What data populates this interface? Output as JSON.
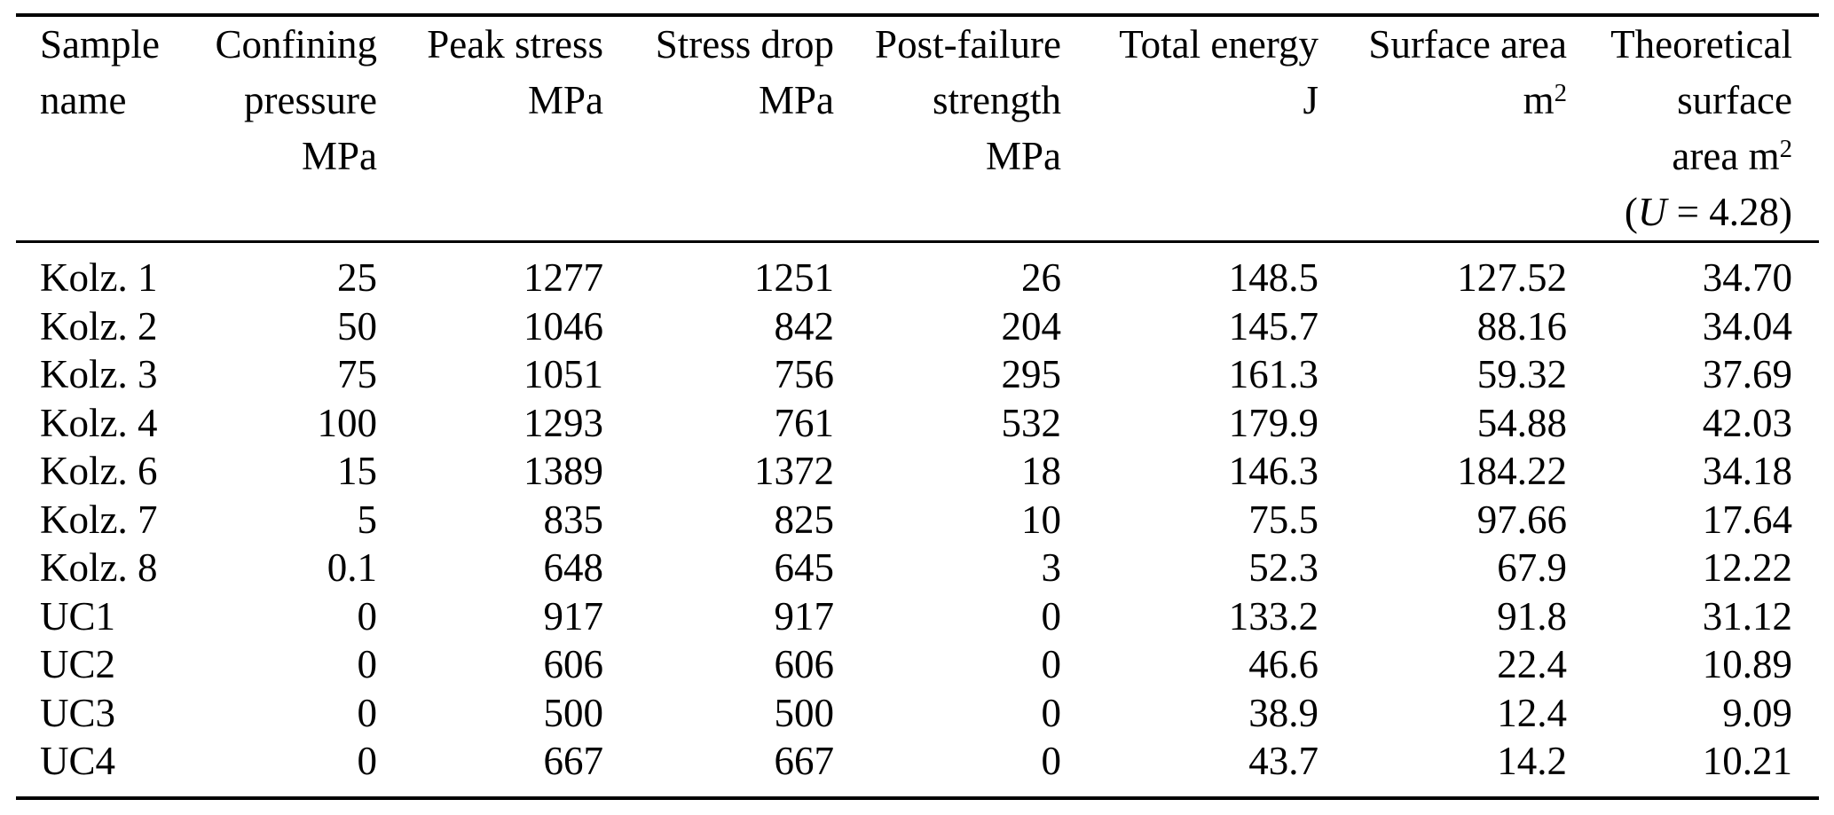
{
  "colors": {
    "text": "#000000",
    "background": "#ffffff",
    "rule": "#000000"
  },
  "table": {
    "columns": [
      {
        "id": "sample-name",
        "align": "left",
        "header_lines": [
          [
            {
              "t": "Sample"
            }
          ],
          [
            {
              "t": "name"
            }
          ]
        ]
      },
      {
        "id": "confining-pressure",
        "align": "right",
        "header_lines": [
          [
            {
              "t": "Confining"
            }
          ],
          [
            {
              "t": "pressure"
            }
          ],
          [
            {
              "t": "MPa"
            }
          ]
        ]
      },
      {
        "id": "peak-stress",
        "align": "right",
        "header_lines": [
          [
            {
              "t": "Peak stress"
            }
          ],
          [
            {
              "t": "MPa"
            }
          ]
        ]
      },
      {
        "id": "stress-drop",
        "align": "right",
        "header_lines": [
          [
            {
              "t": "Stress drop"
            }
          ],
          [
            {
              "t": "MPa"
            }
          ]
        ]
      },
      {
        "id": "post-failure-strength",
        "align": "right",
        "header_lines": [
          [
            {
              "t": "Post-failure"
            }
          ],
          [
            {
              "t": "strength"
            }
          ],
          [
            {
              "t": "MPa"
            }
          ]
        ]
      },
      {
        "id": "total-energy",
        "align": "right",
        "header_lines": [
          [
            {
              "t": "Total energy"
            }
          ],
          [
            {
              "t": "J"
            }
          ]
        ]
      },
      {
        "id": "surface-area",
        "align": "right",
        "header_lines": [
          [
            {
              "t": "Surface area"
            }
          ],
          [
            {
              "t": "m"
            },
            {
              "t": "2",
              "sup": true
            }
          ]
        ]
      },
      {
        "id": "theoretical-surface-area",
        "align": "right",
        "header_lines": [
          [
            {
              "t": "Theoretical"
            }
          ],
          [
            {
              "t": "surface"
            }
          ],
          [
            {
              "t": "area m"
            },
            {
              "t": "2",
              "sup": true
            }
          ],
          [
            {
              "t": "("
            },
            {
              "t": "U",
              "italic": true
            },
            {
              "t": " = 4.28)"
            }
          ]
        ]
      }
    ],
    "rows": [
      [
        "Kolz. 1",
        "25",
        "1277",
        "1251",
        "26",
        "148.5",
        "127.52",
        "34.70"
      ],
      [
        "Kolz. 2",
        "50",
        "1046",
        "842",
        "204",
        "145.7",
        "88.16",
        "34.04"
      ],
      [
        "Kolz. 3",
        "75",
        "1051",
        "756",
        "295",
        "161.3",
        "59.32",
        "37.69"
      ],
      [
        "Kolz. 4",
        "100",
        "1293",
        "761",
        "532",
        "179.9",
        "54.88",
        "42.03"
      ],
      [
        "Kolz. 6",
        "15",
        "1389",
        "1372",
        "18",
        "146.3",
        "184.22",
        "34.18"
      ],
      [
        "Kolz. 7",
        "5",
        "835",
        "825",
        "10",
        "75.5",
        "97.66",
        "17.64"
      ],
      [
        "Kolz. 8",
        "0.1",
        "648",
        "645",
        "3",
        "52.3",
        "67.9",
        "12.22"
      ],
      [
        "UC1",
        "0",
        "917",
        "917",
        "0",
        "133.2",
        "91.8",
        "31.12"
      ],
      [
        "UC2",
        "0",
        "606",
        "606",
        "0",
        "46.6",
        "22.4",
        "10.89"
      ],
      [
        "UC3",
        "0",
        "500",
        "500",
        "0",
        "38.9",
        "12.4",
        "9.09"
      ],
      [
        "UC4",
        "0",
        "667",
        "667",
        "0",
        "43.7",
        "14.2",
        "10.21"
      ]
    ]
  }
}
